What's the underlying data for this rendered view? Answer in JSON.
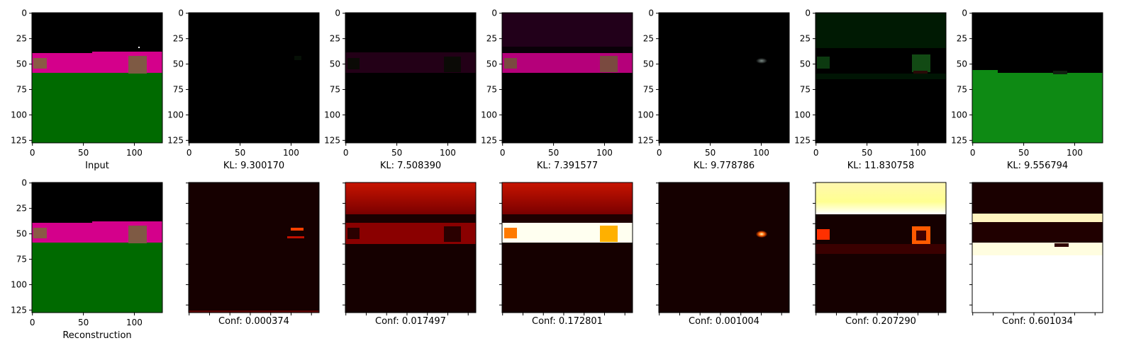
{
  "figure": {
    "top_row": [
      {
        "caption": "Input",
        "content": "input-scene"
      },
      {
        "caption": "KL: 9.300170",
        "content": "slot-1-nearly-black"
      },
      {
        "caption": "KL: 7.508390",
        "content": "slot-2-faint-magenta-band"
      },
      {
        "caption": "KL: 7.391577",
        "content": "slot-3-magenta-band-with-cubes"
      },
      {
        "caption": "KL: 9.778786",
        "content": "slot-4-small-gray-spot"
      },
      {
        "caption": "KL: 11.830758",
        "content": "slot-5-faint-green-cubes"
      },
      {
        "caption": "KL: 9.556794",
        "content": "slot-6-green-floor"
      }
    ],
    "bottom_row": [
      {
        "caption": "Reconstruction",
        "content": "reconstruction-scene"
      },
      {
        "caption": "Conf: 0.000374",
        "content": "mask-1"
      },
      {
        "caption": "Conf: 0.017497",
        "content": "mask-2"
      },
      {
        "caption": "Conf: 0.172801",
        "content": "mask-3"
      },
      {
        "caption": "Conf: 0.001004",
        "content": "mask-4"
      },
      {
        "caption": "Conf: 0.207290",
        "content": "mask-5"
      },
      {
        "caption": "Conf: 0.601034",
        "content": "mask-6"
      }
    ],
    "x_ticks": [
      "0",
      "50",
      "100"
    ],
    "y_ticks": [
      "0",
      "25",
      "50",
      "75",
      "100",
      "125"
    ],
    "colors": {
      "sky": "#000000",
      "wall": "#d4008b",
      "floor": "#006600",
      "cube": "#8a5a44",
      "heat_low": "#150000",
      "heat_high": "#ffffe0"
    }
  }
}
